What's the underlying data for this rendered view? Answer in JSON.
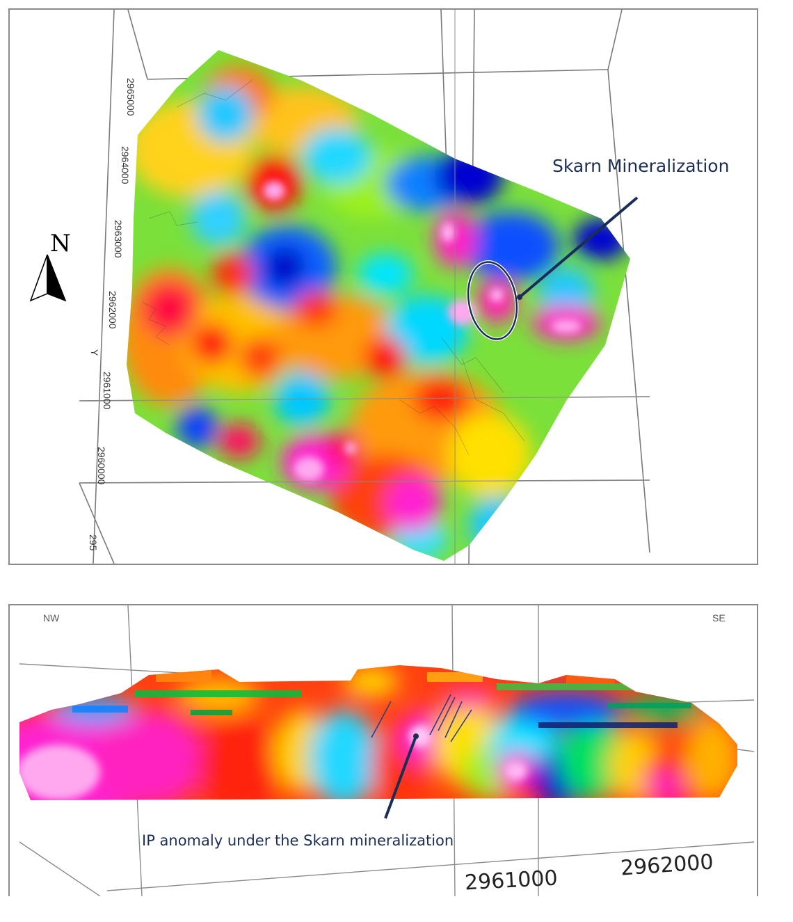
{
  "top_map": {
    "north_label": "N",
    "callout": "Skarn Mineralization",
    "northing_ticks": [
      "2965000",
      "2964000",
      "2963000",
      "2962000",
      "2961000",
      "2960000",
      "295"
    ],
    "side_axis_letter": "Y"
  },
  "bottom_section": {
    "left_direction": "NW",
    "right_direction": "SE",
    "callout": "IP anomaly under the Skarn mineralization",
    "northing_ticks": [
      "2961000",
      "2962000"
    ]
  },
  "colors": {
    "callout_text": "#1a2e55",
    "grid": "#7a7a7a",
    "palette": [
      "#0000d8",
      "#1a8cff",
      "#00e5ff",
      "#00e06a",
      "#9cf01a",
      "#ffff00",
      "#ffb300",
      "#ff6a00",
      "#ff1010",
      "#ff2ad6",
      "#ff9bf0"
    ]
  }
}
